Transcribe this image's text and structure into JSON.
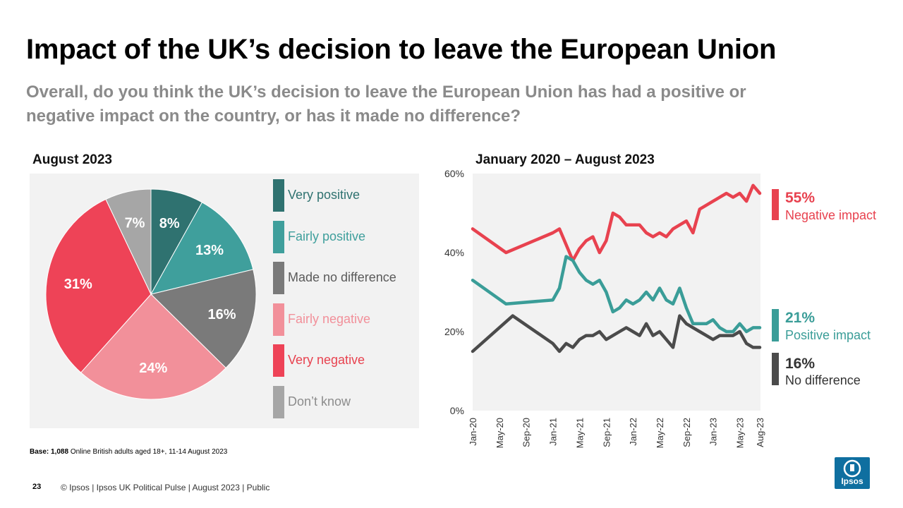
{
  "title": "Impact of the UK’s decision to leave the European Union",
  "subtitle": "Overall, do you think the UK’s decision to leave the European Union has had a positive or negative impact on the country, or has it made no difference?",
  "colors": {
    "very_positive": "#2f7270",
    "fairly_positive": "#3f9f9c",
    "no_difference": "#7a7a7a",
    "fairly_negative": "#f2909a",
    "very_negative": "#ee4357",
    "dont_know": "#a6a6a6",
    "negative_line": "#e8424f",
    "positive_line": "#3a9d98",
    "nodiff_line": "#4b4b4b"
  },
  "chart_data": [
    {
      "type": "pie",
      "title": "August 2023",
      "slices": [
        {
          "label": "Very positive",
          "value": 8,
          "display": "8%",
          "color_key": "very_positive"
        },
        {
          "label": "Fairly positive",
          "value": 13,
          "display": "13%",
          "color_key": "fairly_positive"
        },
        {
          "label": "Made no difference",
          "value": 16,
          "display": "16%",
          "color_key": "no_difference"
        },
        {
          "label": "Fairly negative",
          "value": 24,
          "display": "24%",
          "color_key": "fairly_negative"
        },
        {
          "label": "Very negative",
          "value": 31,
          "display": "31%",
          "color_key": "very_negative"
        },
        {
          "label": "Don’t know",
          "value": 7,
          "display": "7%",
          "color_key": "dont_know"
        }
      ],
      "start_angle": "12 o'clock, clockwise",
      "legend_placement": "right"
    },
    {
      "type": "line",
      "title": "January 2020 – August 2023",
      "ylim": [
        0,
        60
      ],
      "yticks": [
        "0%",
        "20%",
        "40%",
        "60%"
      ],
      "x_tick_labels": [
        "Jan-20",
        "May-20",
        "Sep-20",
        "Jan-21",
        "May-21",
        "Sep-21",
        "Jan-22",
        "May-22",
        "Sep-22",
        "Jan-23",
        "May-23",
        "Aug-23"
      ],
      "x_domain_months": [
        0,
        43
      ],
      "series": [
        {
          "name": "Negative impact",
          "color_key": "negative_line",
          "end_label": "55%",
          "points": [
            [
              0,
              46
            ],
            [
              5,
              40
            ],
            [
              12,
              45
            ],
            [
              13,
              46
            ],
            [
              15,
              38
            ],
            [
              16,
              41
            ],
            [
              17,
              43
            ],
            [
              18,
              44
            ],
            [
              19,
              40
            ],
            [
              20,
              43
            ],
            [
              21,
              50
            ],
            [
              22,
              49
            ],
            [
              23,
              47
            ],
            [
              24,
              47
            ],
            [
              25,
              47
            ],
            [
              26,
              45
            ],
            [
              27,
              44
            ],
            [
              28,
              45
            ],
            [
              29,
              44
            ],
            [
              30,
              46
            ],
            [
              31,
              47
            ],
            [
              32,
              48
            ],
            [
              33,
              45
            ],
            [
              34,
              51
            ],
            [
              35,
              52
            ],
            [
              36,
              53
            ],
            [
              37,
              54
            ],
            [
              38,
              55
            ],
            [
              39,
              54
            ],
            [
              40,
              55
            ],
            [
              41,
              53
            ],
            [
              42,
              57
            ],
            [
              43,
              55
            ]
          ]
        },
        {
          "name": "Positive impact",
          "color_key": "positive_line",
          "end_label": "21%",
          "points": [
            [
              0,
              33
            ],
            [
              5,
              27
            ],
            [
              12,
              28
            ],
            [
              13,
              31
            ],
            [
              14,
              39
            ],
            [
              15,
              38
            ],
            [
              16,
              35
            ],
            [
              17,
              33
            ],
            [
              18,
              32
            ],
            [
              19,
              33
            ],
            [
              20,
              30
            ],
            [
              21,
              25
            ],
            [
              22,
              26
            ],
            [
              23,
              28
            ],
            [
              24,
              27
            ],
            [
              25,
              28
            ],
            [
              26,
              30
            ],
            [
              27,
              28
            ],
            [
              28,
              31
            ],
            [
              29,
              28
            ],
            [
              30,
              27
            ],
            [
              31,
              31
            ],
            [
              32,
              26
            ],
            [
              33,
              22
            ],
            [
              34,
              22
            ],
            [
              35,
              22
            ],
            [
              36,
              23
            ],
            [
              37,
              21
            ],
            [
              38,
              20
            ],
            [
              39,
              20
            ],
            [
              40,
              22
            ],
            [
              41,
              20
            ],
            [
              42,
              21
            ],
            [
              43,
              21
            ]
          ]
        },
        {
          "name": "No difference",
          "color_key": "nodiff_line",
          "end_label": "16%",
          "points": [
            [
              0,
              15
            ],
            [
              6,
              24
            ],
            [
              12,
              17
            ],
            [
              13,
              15
            ],
            [
              14,
              17
            ],
            [
              15,
              16
            ],
            [
              16,
              18
            ],
            [
              17,
              19
            ],
            [
              18,
              19
            ],
            [
              19,
              20
            ],
            [
              20,
              18
            ],
            [
              21,
              19
            ],
            [
              22,
              20
            ],
            [
              23,
              21
            ],
            [
              24,
              20
            ],
            [
              25,
              19
            ],
            [
              26,
              22
            ],
            [
              27,
              19
            ],
            [
              28,
              20
            ],
            [
              29,
              18
            ],
            [
              30,
              16
            ],
            [
              31,
              24
            ],
            [
              32,
              22
            ],
            [
              33,
              21
            ],
            [
              34,
              20
            ],
            [
              35,
              19
            ],
            [
              36,
              18
            ],
            [
              37,
              19
            ],
            [
              38,
              19
            ],
            [
              39,
              19
            ],
            [
              40,
              20
            ],
            [
              41,
              17
            ],
            [
              42,
              16
            ],
            [
              43,
              16
            ]
          ]
        }
      ]
    }
  ],
  "pie_panel_title": "August 2023",
  "line_panel_title": "January 2020 – August 2023",
  "base_note": {
    "label": "Base:",
    "number": "1,088",
    "text": " Online British adults aged 18+,  11-14 August 2023"
  },
  "page_number": "23",
  "footer": "© Ipsos  |  Ipsos UK Political Pulse | August 2023 | Public",
  "logo_text": "Ipsos"
}
